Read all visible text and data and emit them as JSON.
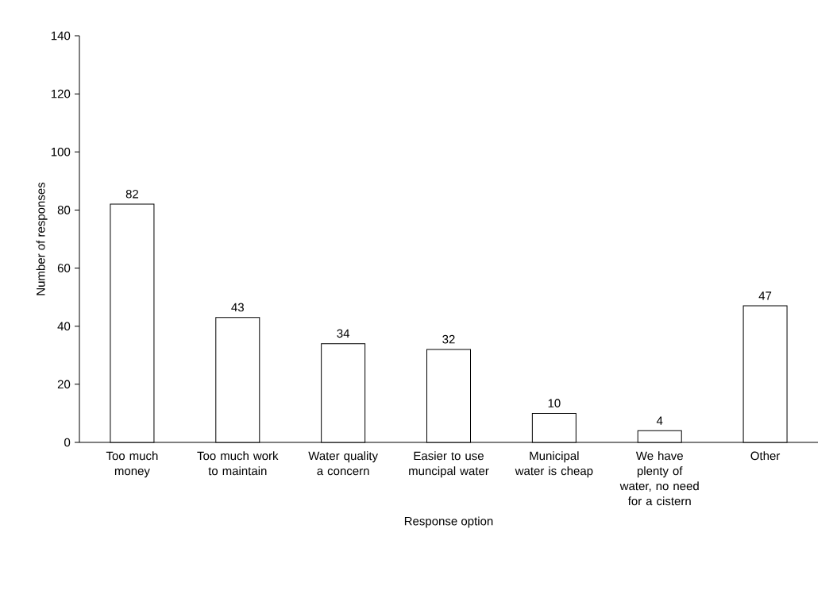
{
  "chart_data": {
    "type": "bar",
    "xlabel": "Response option",
    "ylabel": "Number of responses",
    "categories": [
      "Too much money",
      "Too much work to maintain",
      "Water quality a concern",
      "Easier to use muncipal water",
      "Municipal water is cheap",
      "We have plenty of water, no need for a cistern",
      "Other"
    ],
    "values": [
      82,
      43,
      34,
      32,
      10,
      4,
      47
    ],
    "color": "#ffffff",
    "ylim": [
      0,
      140
    ],
    "yticks": [
      0,
      20,
      40,
      60,
      80,
      100,
      120,
      140
    ],
    "data_labels": true,
    "grid": false
  }
}
